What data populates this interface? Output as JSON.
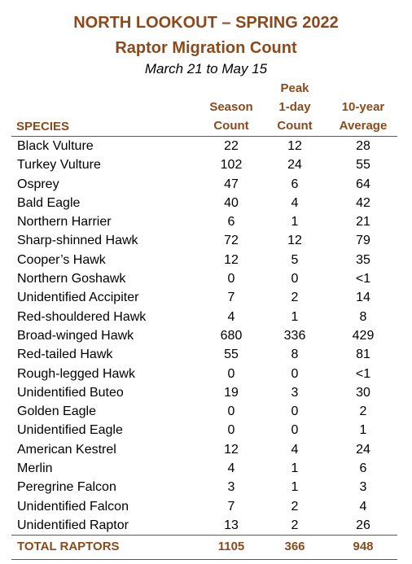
{
  "title_line1": "NORTH LOOKOUT – SPRING 2022",
  "title_line2": "Raptor Migration Count",
  "subtitle": "March 21 to May 15",
  "headers": {
    "species": "SPECIES",
    "season_line1": "Season",
    "season_line2": "Count",
    "peak_line1": "Peak",
    "peak_line2": "1-day",
    "peak_line3": "Count",
    "avg_line1": "10-year",
    "avg_line2": "Average"
  },
  "rows": [
    {
      "species": "Black Vulture",
      "season": "22",
      "peak": "12",
      "avg": "28"
    },
    {
      "species": "Turkey Vulture",
      "season": "102",
      "peak": "24",
      "avg": "55"
    },
    {
      "species": "Osprey",
      "season": "47",
      "peak": "6",
      "avg": "64"
    },
    {
      "species": "Bald Eagle",
      "season": "40",
      "peak": "4",
      "avg": "42"
    },
    {
      "species": "Northern Harrier",
      "season": "6",
      "peak": "1",
      "avg": "21"
    },
    {
      "species": "Sharp-shinned Hawk",
      "season": "72",
      "peak": "12",
      "avg": "79"
    },
    {
      "species": "Cooper’s Hawk",
      "season": "12",
      "peak": "5",
      "avg": "35"
    },
    {
      "species": "Northern Goshawk",
      "season": "0",
      "peak": "0",
      "avg": "<1"
    },
    {
      "species": "Unidentified Accipiter",
      "season": "7",
      "peak": "2",
      "avg": "14"
    },
    {
      "species": "Red-shouldered Hawk",
      "season": "4",
      "peak": "1",
      "avg": "8"
    },
    {
      "species": "Broad-winged Hawk",
      "season": "680",
      "peak": "336",
      "avg": "429"
    },
    {
      "species": "Red-tailed Hawk",
      "season": "55",
      "peak": "8",
      "avg": "81"
    },
    {
      "species": "Rough-legged Hawk",
      "season": "0",
      "peak": "0",
      "avg": "<1"
    },
    {
      "species": "Unidentified Buteo",
      "season": "19",
      "peak": "3",
      "avg": "30"
    },
    {
      "species": "Golden Eagle",
      "season": "0",
      "peak": "0",
      "avg": "2"
    },
    {
      "species": "Unidentified Eagle",
      "season": "0",
      "peak": "0",
      "avg": "1"
    },
    {
      "species": "American Kestrel",
      "season": "12",
      "peak": "4",
      "avg": "24"
    },
    {
      "species": "Merlin",
      "season": "4",
      "peak": "1",
      "avg": "6"
    },
    {
      "species": "Peregrine Falcon",
      "season": "3",
      "peak": "1",
      "avg": "3"
    },
    {
      "species": "Unidentified Falcon",
      "season": "7",
      "peak": "2",
      "avg": "4"
    },
    {
      "species": "Unidentified Raptor",
      "season": "13",
      "peak": "2",
      "avg": "26"
    }
  ],
  "total": {
    "label": "TOTAL RAPTORS",
    "season": "1105",
    "peak": "366",
    "avg": "948"
  },
  "colors": {
    "accent": "#8B4A1C"
  }
}
